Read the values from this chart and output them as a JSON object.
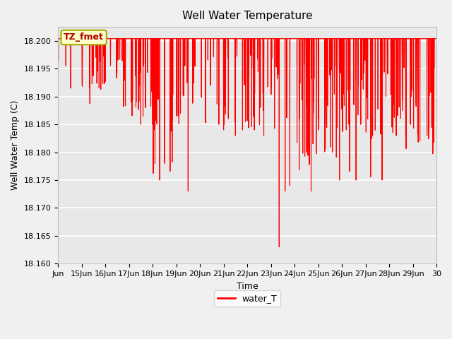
{
  "title": "Well Water Temperature",
  "xlabel": "Time",
  "ylabel": "Well Water Temp (C)",
  "legend_label": "water_T",
  "annotation_text": "TZ_fmet",
  "ylim": [
    18.16,
    18.2025
  ],
  "yticks": [
    18.16,
    18.165,
    18.17,
    18.175,
    18.18,
    18.185,
    18.19,
    18.195,
    18.2
  ],
  "x_tick_labels": [
    "Jun",
    "15Jun",
    "16Jun",
    "17Jun",
    "18Jun",
    "19Jun",
    "20Jun",
    "21Jun",
    "22Jun",
    "23Jun",
    "24Jun",
    "25Jun",
    "26Jun",
    "27Jun",
    "28Jun",
    "29Jun",
    "30"
  ],
  "line_color": "#ff0000",
  "line_width": 0.8,
  "plot_bg_color": "#e8e8e8",
  "fig_bg_color": "#f0f0f0",
  "annotation_bg": "#ffffcc",
  "annotation_border": "#aaaa00",
  "annotation_text_color": "#aa0000",
  "base_temp": 18.2004,
  "title_fontsize": 11,
  "label_fontsize": 9,
  "tick_fontsize": 8
}
